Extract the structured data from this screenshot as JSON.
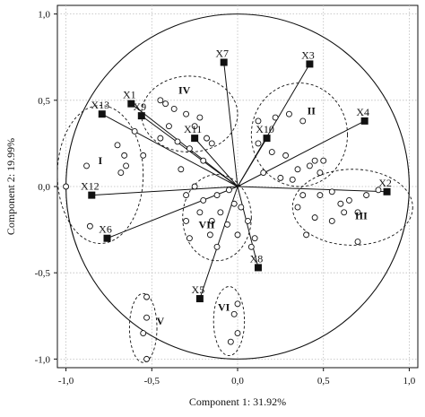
{
  "colors": {
    "ink": "#111111",
    "grid": "#bdbdbd",
    "background": "#ffffff"
  },
  "chart_data": {
    "type": "scatter",
    "subtype": "PCA correlation circle (biplot) with grouped scores",
    "xlabel": "Component 1: 31.92%",
    "ylabel": "Component 2: 19.99%",
    "xlim": [
      -1.05,
      1.05
    ],
    "ylim": [
      -1.05,
      1.05
    ],
    "x_ticks": [
      -1.0,
      -0.5,
      0.0,
      0.5,
      1.0
    ],
    "y_ticks": [
      -1.0,
      -0.5,
      0.0,
      0.5,
      1.0
    ],
    "x_tick_labels": [
      "-1,0",
      "-0,5",
      "0,0",
      "0,5",
      "1,0"
    ],
    "y_tick_labels": [
      "-1,0",
      "-0,5",
      "0,0",
      "0,5",
      "1,0"
    ],
    "grid": "dotted",
    "unit_circle": true,
    "variables": [
      {
        "name": "X1",
        "x": -0.62,
        "y": 0.48
      },
      {
        "name": "X2",
        "x": 0.87,
        "y": -0.03
      },
      {
        "name": "X3",
        "x": 0.42,
        "y": 0.71
      },
      {
        "name": "X4",
        "x": 0.74,
        "y": 0.38
      },
      {
        "name": "X5",
        "x": -0.22,
        "y": -0.65
      },
      {
        "name": "X6",
        "x": -0.76,
        "y": -0.3
      },
      {
        "name": "X7",
        "x": -0.08,
        "y": 0.72
      },
      {
        "name": "X8",
        "x": 0.12,
        "y": -0.47
      },
      {
        "name": "X9",
        "x": -0.56,
        "y": 0.41
      },
      {
        "name": "X10",
        "x": 0.17,
        "y": 0.28
      },
      {
        "name": "X11",
        "x": -0.25,
        "y": 0.28
      },
      {
        "name": "X12",
        "x": -0.85,
        "y": -0.05
      },
      {
        "name": "X13",
        "x": -0.79,
        "y": 0.42
      }
    ],
    "observations": [
      [
        -1.0,
        0.0
      ],
      [
        -0.88,
        0.12
      ],
      [
        -0.86,
        -0.23
      ],
      [
        -0.66,
        0.18
      ],
      [
        -0.7,
        0.24
      ],
      [
        -0.68,
        0.08
      ],
      [
        -0.6,
        0.32
      ],
      [
        -0.65,
        0.12
      ],
      [
        -0.55,
        0.18
      ],
      [
        -0.45,
        0.5
      ],
      [
        -0.42,
        0.48
      ],
      [
        -0.37,
        0.45
      ],
      [
        -0.3,
        0.42
      ],
      [
        -0.22,
        0.4
      ],
      [
        -0.25,
        0.35
      ],
      [
        -0.4,
        0.35
      ],
      [
        -0.45,
        0.28
      ],
      [
        -0.35,
        0.26
      ],
      [
        -0.28,
        0.22
      ],
      [
        -0.18,
        0.28
      ],
      [
        -0.15,
        0.25
      ],
      [
        -0.2,
        0.15
      ],
      [
        -0.33,
        0.1
      ],
      [
        0.12,
        0.38
      ],
      [
        0.22,
        0.4
      ],
      [
        0.3,
        0.42
      ],
      [
        0.38,
        0.38
      ],
      [
        0.12,
        0.25
      ],
      [
        0.2,
        0.2
      ],
      [
        0.28,
        0.18
      ],
      [
        0.42,
        0.12
      ],
      [
        0.35,
        0.1
      ],
      [
        0.48,
        0.08
      ],
      [
        0.45,
        0.15
      ],
      [
        0.5,
        0.15
      ],
      [
        0.25,
        0.05
      ],
      [
        0.32,
        0.04
      ],
      [
        0.15,
        0.08
      ],
      [
        0.38,
        -0.05
      ],
      [
        0.48,
        -0.05
      ],
      [
        0.55,
        -0.03
      ],
      [
        0.6,
        -0.1
      ],
      [
        0.65,
        -0.08
      ],
      [
        0.62,
        -0.15
      ],
      [
        0.7,
        -0.15
      ],
      [
        0.75,
        -0.05
      ],
      [
        0.82,
        -0.02
      ],
      [
        0.55,
        -0.2
      ],
      [
        0.45,
        -0.18
      ],
      [
        0.35,
        -0.12
      ],
      [
        0.4,
        -0.28
      ],
      [
        0.7,
        -0.32
      ],
      [
        -0.3,
        -0.05
      ],
      [
        -0.25,
        0.0
      ],
      [
        -0.2,
        -0.08
      ],
      [
        -0.12,
        -0.05
      ],
      [
        -0.1,
        -0.15
      ],
      [
        -0.15,
        -0.2
      ],
      [
        -0.22,
        -0.15
      ],
      [
        -0.3,
        -0.2
      ],
      [
        -0.28,
        -0.3
      ],
      [
        -0.16,
        -0.28
      ],
      [
        -0.12,
        -0.35
      ],
      [
        -0.06,
        -0.22
      ],
      [
        -0.02,
        -0.1
      ],
      [
        0.02,
        -0.12
      ],
      [
        -0.05,
        -0.02
      ],
      [
        0.0,
        -0.28
      ],
      [
        0.06,
        -0.2
      ],
      [
        0.1,
        -0.3
      ],
      [
        0.08,
        -0.35
      ],
      [
        0.0,
        -0.68
      ],
      [
        -0.02,
        -0.74
      ],
      [
        0.0,
        -0.85
      ],
      [
        -0.04,
        -0.9
      ],
      [
        -0.53,
        -0.64
      ],
      [
        -0.53,
        -0.76
      ],
      [
        -0.55,
        -0.85
      ],
      [
        -0.53,
        -1.0
      ]
    ],
    "group_labels": [
      {
        "label": "I",
        "x": -0.8,
        "y": 0.15
      },
      {
        "label": "II",
        "x": 0.43,
        "y": 0.44
      },
      {
        "label": "III",
        "x": 0.72,
        "y": -0.17
      },
      {
        "label": "IV",
        "x": -0.31,
        "y": 0.56
      },
      {
        "label": "V",
        "x": -0.45,
        "y": -0.78
      },
      {
        "label": "VI",
        "x": -0.08,
        "y": -0.7
      },
      {
        "label": "VII",
        "x": -0.18,
        "y": -0.22
      }
    ],
    "group_ellipses": [
      {
        "group": "I",
        "cx": -0.8,
        "cy": 0.07,
        "rx": 0.25,
        "ry": 0.4
      },
      {
        "group": "II",
        "cx": 0.36,
        "cy": 0.3,
        "rx": 0.28,
        "ry": 0.3
      },
      {
        "group": "III",
        "cx": 0.67,
        "cy": -0.12,
        "rx": 0.35,
        "ry": 0.22
      },
      {
        "group": "IV",
        "cx": -0.28,
        "cy": 0.42,
        "rx": 0.28,
        "ry": 0.22
      },
      {
        "group": "V",
        "cx": -0.55,
        "cy": -0.82,
        "rx": 0.08,
        "ry": 0.2
      },
      {
        "group": "VI",
        "cx": -0.05,
        "cy": -0.78,
        "rx": 0.09,
        "ry": 0.2
      },
      {
        "group": "VII",
        "cx": -0.12,
        "cy": -0.18,
        "rx": 0.2,
        "ry": 0.25
      }
    ]
  }
}
